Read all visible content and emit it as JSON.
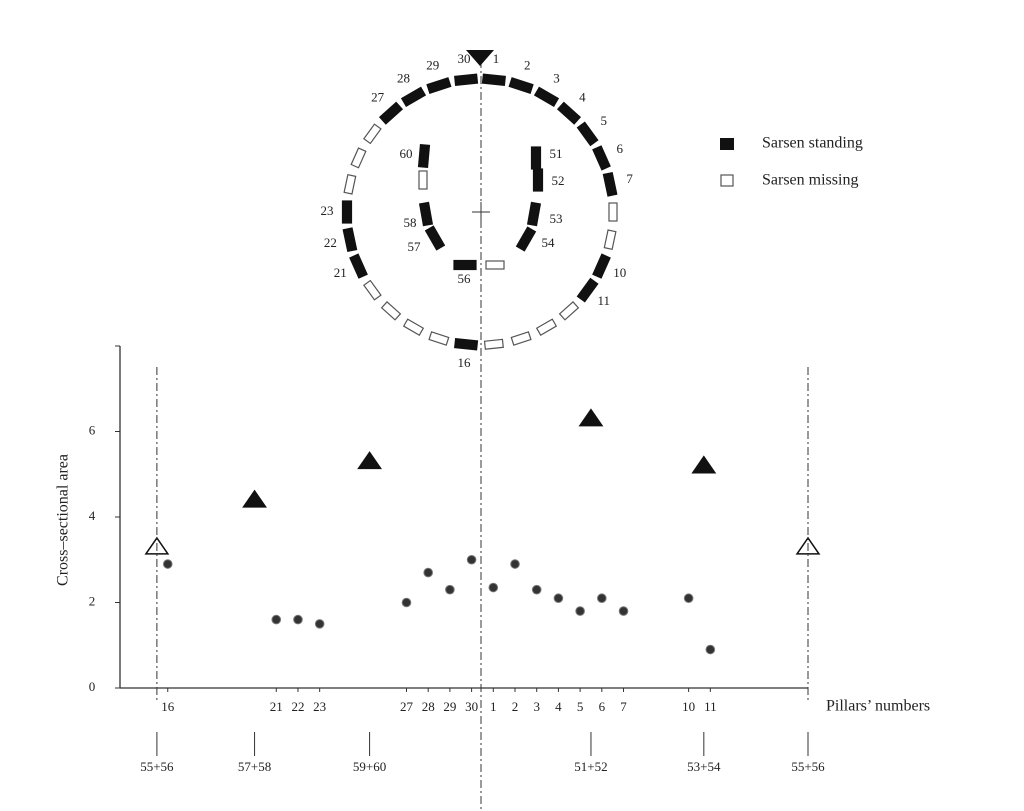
{
  "plan": {
    "legend": [
      "Sarsen standing",
      "Sarsen missing"
    ],
    "circle": [
      {
        "label": "1",
        "standing": true
      },
      {
        "label": "2",
        "standing": true
      },
      {
        "label": "3",
        "standing": true
      },
      {
        "label": "4",
        "standing": true
      },
      {
        "label": "5",
        "standing": true
      },
      {
        "label": "6",
        "standing": true
      },
      {
        "label": "7",
        "standing": true
      },
      {
        "label": null,
        "standing": false
      },
      {
        "label": null,
        "standing": false
      },
      {
        "label": "10",
        "standing": true
      },
      {
        "label": "11",
        "standing": true
      },
      {
        "label": null,
        "standing": false
      },
      {
        "label": null,
        "standing": false
      },
      {
        "label": null,
        "standing": false
      },
      {
        "label": null,
        "standing": false
      },
      {
        "label": "16",
        "standing": true
      },
      {
        "label": null,
        "standing": false
      },
      {
        "label": null,
        "standing": false
      },
      {
        "label": null,
        "standing": false
      },
      {
        "label": null,
        "standing": false
      },
      {
        "label": "21",
        "standing": true
      },
      {
        "label": "22",
        "standing": true
      },
      {
        "label": "23",
        "standing": true
      },
      {
        "label": null,
        "standing": false
      },
      {
        "label": null,
        "standing": false
      },
      {
        "label": null,
        "standing": false
      },
      {
        "label": "27",
        "standing": true
      },
      {
        "label": "28",
        "standing": true
      },
      {
        "label": "29",
        "standing": true
      },
      {
        "label": "30",
        "standing": true
      }
    ],
    "horseshoe": [
      {
        "label": "51",
        "standing": true
      },
      {
        "label": "52",
        "standing": true
      },
      {
        "label": "53",
        "standing": true
      },
      {
        "label": "54",
        "standing": true
      },
      {
        "label": null,
        "standing": false
      },
      {
        "label": "56",
        "standing": true
      },
      {
        "label": "57",
        "standing": true
      },
      {
        "label": "58",
        "standing": true
      },
      {
        "label": null,
        "standing": false
      },
      {
        "label": "60",
        "standing": true
      }
    ]
  },
  "chart_data": {
    "type": "scatter",
    "ylabel": "Cross–sectional area",
    "xlabel": "Pillars’ numbers",
    "ylim": [
      0,
      8
    ],
    "yticks": [
      0,
      2,
      4,
      6
    ],
    "xlim": [
      -2.2,
      29.5
    ],
    "xticks": [
      {
        "value": 0,
        "label": "16"
      },
      {
        "value": 5,
        "label": "21"
      },
      {
        "value": 6,
        "label": "22"
      },
      {
        "value": 7,
        "label": "23"
      },
      {
        "value": 11,
        "label": "27"
      },
      {
        "value": 12,
        "label": "28"
      },
      {
        "value": 13,
        "label": "29"
      },
      {
        "value": 14,
        "label": "30"
      },
      {
        "value": 15,
        "label": "1"
      },
      {
        "value": 16,
        "label": "2"
      },
      {
        "value": 17,
        "label": "3"
      },
      {
        "value": 18,
        "label": "4"
      },
      {
        "value": 19,
        "label": "5"
      },
      {
        "value": 20,
        "label": "6"
      },
      {
        "value": 21,
        "label": "7"
      },
      {
        "value": 24,
        "label": "10"
      },
      {
        "value": 25,
        "label": "11"
      }
    ],
    "series": [
      {
        "marker": "circle",
        "color": "#333333",
        "x": [
          0,
          5,
          6,
          7,
          11,
          12,
          13,
          14,
          15,
          16,
          17,
          18,
          19,
          20,
          21,
          24,
          25
        ],
        "values": [
          2.9,
          1.6,
          1.6,
          1.5,
          2.0,
          2.7,
          2.3,
          3.0,
          2.35,
          2.9,
          2.3,
          2.1,
          1.8,
          2.1,
          1.8,
          2.1,
          0.9
        ]
      },
      {
        "marker": "triangle",
        "color": "#111111",
        "x": [
          -0.5,
          4.0,
          9.3,
          19.5,
          24.7,
          29.5
        ],
        "values": [
          3.3,
          4.4,
          5.3,
          6.3,
          5.2,
          3.3
        ],
        "filled": [
          false,
          true,
          true,
          true,
          true,
          false
        ],
        "labels": [
          "55+56",
          "57+58",
          "59+60",
          "51+52",
          "53+54",
          "55+56"
        ]
      }
    ]
  }
}
